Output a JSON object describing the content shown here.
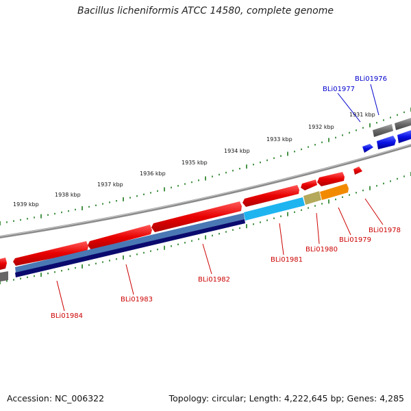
{
  "title": "Bacillus licheniformis ATCC 14580, complete genome",
  "footer": {
    "accession": "Accession: NC_006322",
    "summary": "Topology: circular; Length: 4,222,645 bp; Genes: 4,285"
  },
  "ruler": {
    "kbp_labels": [
      "1931 kbp",
      "1932 kbp",
      "1933 kbp",
      "1934 kbp",
      "1935 kbp",
      "1936 kbp",
      "1937 kbp",
      "1938 kbp",
      "1939 kbp"
    ]
  },
  "colors": {
    "backbone": "#8a8a8a",
    "ruler_tick": "#1a7a1a",
    "cds_red": "#e00000",
    "blue_gene": "#0a12e6",
    "grey_gene": "#666666",
    "label_red": "#cc0000",
    "label_blue": "#0000cc"
  },
  "genes": [
    {
      "id": "BLi01976",
      "color": "blue"
    },
    {
      "id": "BLi01977",
      "color": "blue"
    },
    {
      "id": "BLi01978",
      "color": "red"
    },
    {
      "id": "BLi01979",
      "color": "red"
    },
    {
      "id": "BLi01980",
      "color": "red"
    },
    {
      "id": "BLi01981",
      "color": "red"
    },
    {
      "id": "BLi01982",
      "color": "red"
    },
    {
      "id": "BLi01983",
      "color": "red"
    },
    {
      "id": "BLi01984",
      "color": "red"
    }
  ]
}
